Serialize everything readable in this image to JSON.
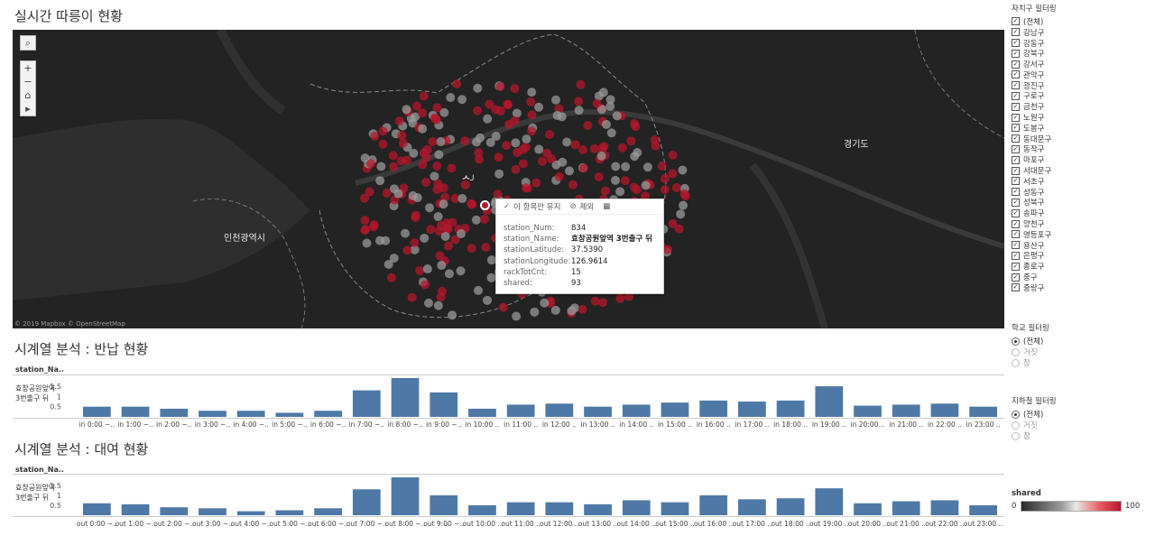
{
  "map": {
    "title": "실시간 따릉이 현황",
    "labels": {
      "incheon": "인천광역시",
      "gyeonggi": "경기도",
      "seoul_marker": "ᄉ╯"
    },
    "attribution": "© 2019 Mapbox © OpenStreetMap",
    "controls": {
      "search": "⌕",
      "zoom_in": "+",
      "zoom_out": "−",
      "home": "⌂",
      "play": "▸"
    },
    "tooltip": {
      "keep_only": "이 항목만 유지",
      "exclude": "제외",
      "fields": [
        {
          "key": "station_Num:",
          "value": "834"
        },
        {
          "key": "station_Name:",
          "value": "효창공원앞역 3번출구 뒤"
        },
        {
          "key": "stationLatitude:",
          "value": "37.5390"
        },
        {
          "key": "stationLongitude:",
          "value": "126.9614"
        },
        {
          "key": "rackTotCnt:",
          "value": "15"
        },
        {
          "key": "shared:",
          "value": "93"
        }
      ]
    }
  },
  "filters": {
    "district": {
      "title": "자치구 필터링",
      "items": [
        "(전체)",
        "강남구",
        "강동구",
        "강북구",
        "강서구",
        "관악구",
        "광진구",
        "구로구",
        "금천구",
        "노원구",
        "도봉구",
        "동대문구",
        "동작구",
        "마포구",
        "서대문구",
        "서초구",
        "성동구",
        "성북구",
        "송파구",
        "양천구",
        "영등포구",
        "용산구",
        "은평구",
        "종로구",
        "중구",
        "중랑구"
      ]
    },
    "school": {
      "title": "학교 필터링",
      "options": [
        "(전체)",
        "거짓",
        "참"
      ],
      "selected": 0
    },
    "subway": {
      "title": "지하철 필터링",
      "options": [
        "(전체)",
        "거짓",
        "참"
      ],
      "selected": 0
    }
  },
  "return_chart": {
    "title": "시계열 분석 : 반납 현황",
    "field": "station_Na..",
    "row_label": [
      "효창공원앞역",
      "3번출구 뒤"
    ]
  },
  "rent_chart": {
    "title": "시계열 분석 : 대여 현황",
    "field": "station_Na..",
    "row_label": [
      "효창공원앞역",
      "3번출구 뒤"
    ]
  },
  "legend": {
    "title": "shared",
    "min": "0",
    "max": "100",
    "colors": [
      "#2a2a2a",
      "#9a9a9a",
      "#e8e8e8",
      "#e8575e",
      "#b5172b"
    ]
  },
  "chart_data": [
    {
      "type": "bar",
      "title": "시계열 분석 : 반납 현황",
      "categories": [
        "in 0:00 ~..",
        "in 1:00 ~..",
        "in 2:00 ~..",
        "in 3:00 ~..",
        "in 4:00 ~..",
        "in 5:00 ~..",
        "in 6:00 ~..",
        "in 7:00 ~..",
        "in 8:00 ~..",
        "in 9:00 ~..",
        "in 10:00 ..",
        "in 11:00 ..",
        "in 12:00 ..",
        "in 13:00 ..",
        "in 14:00 ..",
        "in 15:00 ..",
        "in 16:00 ..",
        "in 17:00 ..",
        "in 18:00 ..",
        "in 19:00 ..",
        "in 20:00 ..",
        "in 21:00 ..",
        "in 22:00 ..",
        "in 23:00 .."
      ],
      "values": [
        0.5,
        0.5,
        0.4,
        0.3,
        0.3,
        0.2,
        0.3,
        1.3,
        1.9,
        1.2,
        0.4,
        0.6,
        0.65,
        0.5,
        0.6,
        0.7,
        0.8,
        0.75,
        0.8,
        1.5,
        0.55,
        0.6,
        0.65,
        0.5
      ],
      "yticks": [
        "0.5",
        "1",
        "1.5"
      ],
      "ylim": [
        0,
        1.9
      ]
    },
    {
      "type": "bar",
      "title": "시계열 분석 : 대여 현황",
      "categories": [
        "out 0:00 ~..",
        "out 1:00 ~..",
        "out 2:00 ~..",
        "out 3:00 ~..",
        "out 4:00 ~..",
        "out 5:00 ~..",
        "out 6:00 ~..",
        "out 7:00 ~..",
        "out 8:00 ~..",
        "out 9:00 ~..",
        "out 10:00 ..",
        "out 11:00 ..",
        "out 12:00 ..",
        "out 13:00 ..",
        "out 14:00 ..",
        "out 15:00 ..",
        "out 16:00 ..",
        "out 17:00 ..",
        "out 18:00 ..",
        "out 19:00 ..",
        "out 20:00 ..",
        "out 21:00 ..",
        "out 22:00 ..",
        "out 23:00 .."
      ],
      "values": [
        0.6,
        0.55,
        0.4,
        0.35,
        0.2,
        0.25,
        0.35,
        1.3,
        1.9,
        1.0,
        0.5,
        0.65,
        0.65,
        0.55,
        0.75,
        0.65,
        1.0,
        0.8,
        0.85,
        1.35,
        0.6,
        0.7,
        0.75,
        0.5
      ],
      "yticks": [
        "0.5",
        "1",
        "1.5"
      ],
      "ylim": [
        0,
        1.9
      ]
    }
  ]
}
